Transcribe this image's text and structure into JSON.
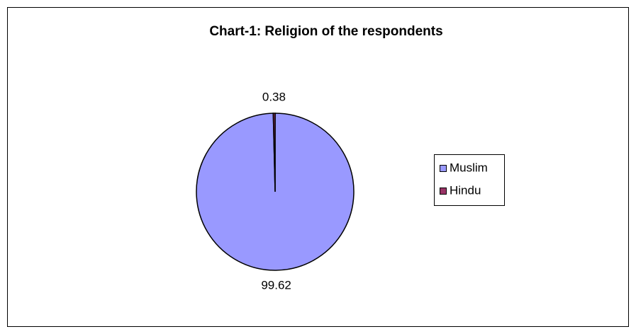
{
  "chart_data": {
    "type": "pie",
    "title": "Chart-1: Religion of the respondents",
    "categories": [
      "Muslim",
      "Hindu"
    ],
    "values": [
      99.62,
      0.38
    ],
    "colors": [
      "#9999ff",
      "#993366"
    ],
    "legend": "right"
  }
}
